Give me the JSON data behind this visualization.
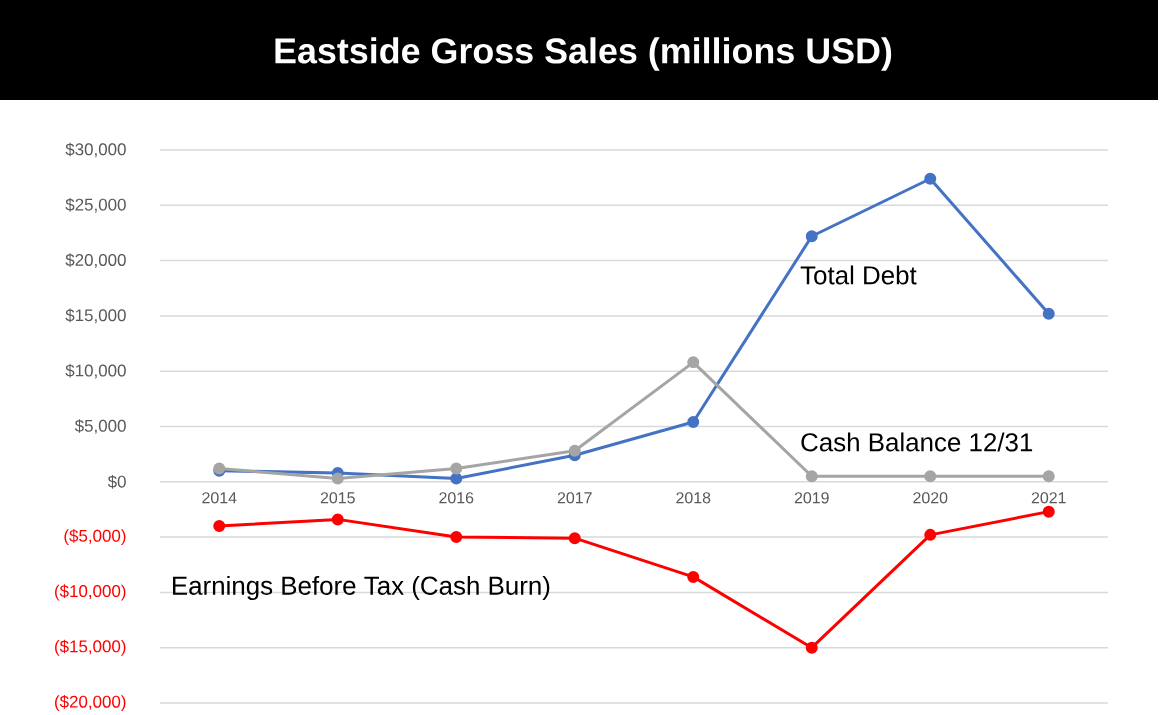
{
  "chart_data": {
    "type": "line",
    "title": "Eastside Gross Sales (millions USD)",
    "categories": [
      "2014",
      "2015",
      "2016",
      "2017",
      "2018",
      "2019",
      "2020",
      "2021"
    ],
    "series": [
      {
        "name": "Total Debt",
        "color": "#4472c4",
        "values": [
          1000,
          800,
          300,
          2400,
          5400,
          22200,
          27400,
          15200
        ]
      },
      {
        "name": "Cash Balance 12/31",
        "color": "#a5a5a5",
        "values": [
          1200,
          300,
          1200,
          2800,
          10800,
          500,
          500,
          500
        ]
      },
      {
        "name": "Earnings Before Tax (Cash Burn)",
        "color": "#ff0000",
        "values": [
          -4000,
          -3400,
          -5000,
          -5100,
          -8600,
          -15000,
          -4800,
          -2700
        ]
      }
    ],
    "ylim": [
      -20000,
      30000
    ],
    "yticks": [
      {
        "value": -20000,
        "label": "($20,000)"
      },
      {
        "value": -15000,
        "label": "($15,000)"
      },
      {
        "value": -10000,
        "label": "($10,000)"
      },
      {
        "value": -5000,
        "label": "($5,000)"
      },
      {
        "value": 0,
        "label": "$0"
      },
      {
        "value": 5000,
        "label": "$5,000"
      },
      {
        "value": 10000,
        "label": "$10,000"
      },
      {
        "value": 15000,
        "label": "$15,000"
      },
      {
        "value": 20000,
        "label": "$20,000"
      },
      {
        "value": 25000,
        "label": "$25,000"
      },
      {
        "value": 30000,
        "label": "$30,000"
      }
    ],
    "grid": "y",
    "legend": false,
    "marker": "circle",
    "line_style": "solid"
  }
}
